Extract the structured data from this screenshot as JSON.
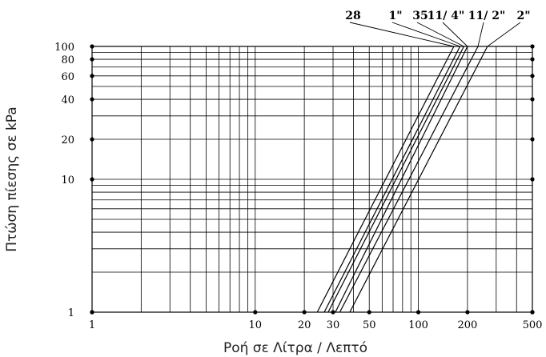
{
  "chart_data": {
    "type": "line",
    "title": "",
    "xlabel": "Ροή σε Λίτρα / Λεπτό",
    "ylabel": "Πτώση πίεσης σε kPa",
    "x_scale": "log",
    "y_scale": "log",
    "xlim": [
      1,
      500
    ],
    "ylim": [
      1,
      100
    ],
    "x_ticks": [
      1,
      10,
      20,
      30,
      50,
      100,
      200,
      500
    ],
    "x_tick_labels": [
      "1",
      "10",
      "20",
      "30",
      "50",
      "100",
      "200",
      "500"
    ],
    "y_ticks": [
      1,
      10,
      20,
      40,
      60,
      80,
      100
    ],
    "y_tick_labels": [
      "1",
      "10",
      "20",
      "40",
      "60",
      "80",
      "100"
    ],
    "grid": true,
    "series": [
      {
        "name": "28",
        "x": [
          24,
          165
        ],
        "y": [
          1,
          100
        ]
      },
      {
        "name": "1\"",
        "x": [
          26.5,
          180
        ],
        "y": [
          1,
          100
        ]
      },
      {
        "name": "35",
        "x": [
          28,
          190
        ],
        "y": [
          1,
          100
        ]
      },
      {
        "name": "11/ 4\"",
        "x": [
          31,
          200
        ],
        "y": [
          1,
          100
        ]
      },
      {
        "name": "11/ 2\"",
        "x": [
          33,
          232
        ],
        "y": [
          1,
          100
        ]
      },
      {
        "name": "2\"",
        "x": [
          38,
          265
        ],
        "y": [
          1,
          100
        ]
      }
    ]
  }
}
